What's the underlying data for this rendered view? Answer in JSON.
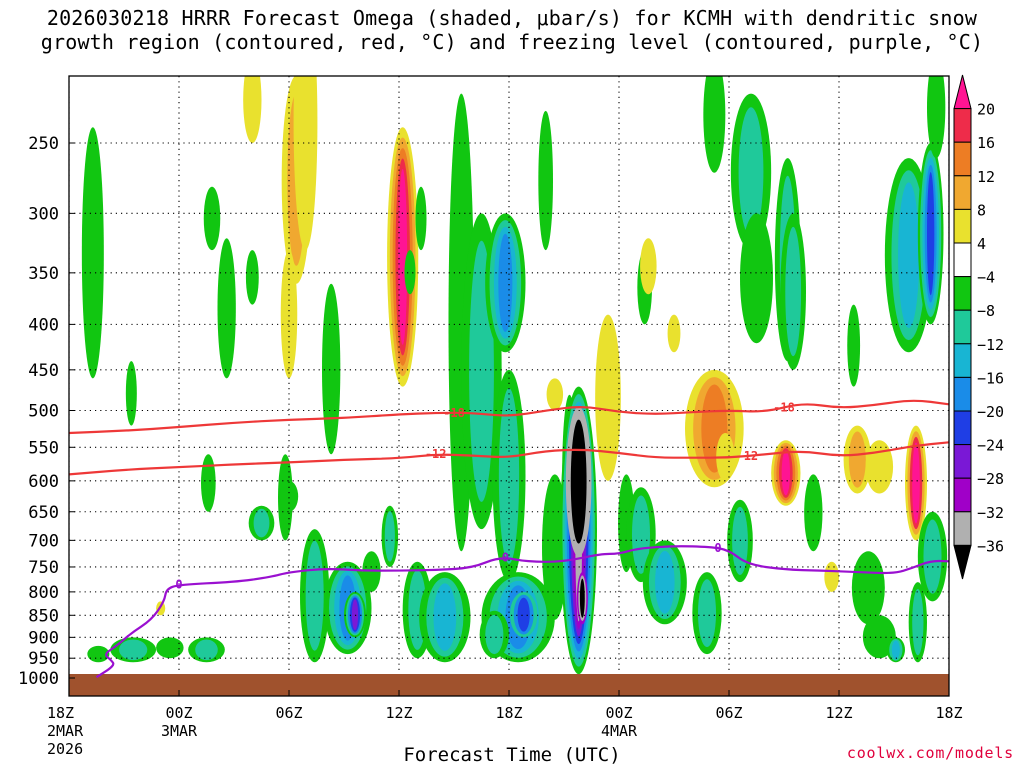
{
  "title_line1": "2026030218 HRRR Forecast Omega (shaded, μbar/s) for KCMH with dendritic snow",
  "title_line2": "growth region (contoured, red, °C) and freezing level (contoured, purple, °C)",
  "credit": "coolwx.com/models",
  "chart_data": {
    "type": "heatmap",
    "title": "2026030218 HRRR Forecast Omega (shaded, μbar/s) for KCMH with dendritic snow growth region (contoured, red, °C) and freezing level (contoured, purple, °C)",
    "xlabel": "Forecast Time (UTC)",
    "ylabel": "",
    "x_range_hours": [
      0,
      48
    ],
    "y_range_hpa": [
      1000,
      200
    ],
    "x_ticks": [
      {
        "hour": 0,
        "lines": [
          "18Z",
          "2MAR",
          "2026"
        ]
      },
      {
        "hour": 6,
        "lines": [
          "00Z",
          "3MAR"
        ]
      },
      {
        "hour": 12,
        "lines": [
          "06Z"
        ]
      },
      {
        "hour": 18,
        "lines": [
          "12Z"
        ]
      },
      {
        "hour": 24,
        "lines": [
          "18Z"
        ]
      },
      {
        "hour": 30,
        "lines": [
          "00Z",
          "4MAR"
        ]
      },
      {
        "hour": 36,
        "lines": [
          "06Z"
        ]
      },
      {
        "hour": 42,
        "lines": [
          "12Z"
        ]
      },
      {
        "hour": 48,
        "lines": [
          "18Z"
        ]
      }
    ],
    "y_ticks": [
      250,
      300,
      350,
      400,
      450,
      500,
      550,
      600,
      650,
      700,
      750,
      800,
      850,
      900,
      950,
      1000
    ],
    "colorbar": {
      "labels": [
        "20",
        "16",
        "12",
        "8",
        "4",
        "−4",
        "−8",
        "−12",
        "−16",
        "−20",
        "−24",
        "−28",
        "−32",
        "−36"
      ],
      "bins": [
        {
          "min": 20,
          "max": null,
          "color": "#ff1493"
        },
        {
          "min": 16,
          "max": 20,
          "color": "#ee2c4a"
        },
        {
          "min": 12,
          "max": 16,
          "color": "#ed7d24"
        },
        {
          "min": 8,
          "max": 12,
          "color": "#f0a830"
        },
        {
          "min": 4,
          "max": 8,
          "color": "#e9e12e"
        },
        {
          "min": -4,
          "max": 4,
          "color": "#ffffff"
        },
        {
          "min": -8,
          "max": -4,
          "color": "#11c611"
        },
        {
          "min": -12,
          "max": -8,
          "color": "#1fc99a"
        },
        {
          "min": -16,
          "max": -12,
          "color": "#18b5d3"
        },
        {
          "min": -20,
          "max": -16,
          "color": "#1a8ce8"
        },
        {
          "min": -24,
          "max": -20,
          "color": "#1f3ee5"
        },
        {
          "min": -28,
          "max": -24,
          "color": "#7a18d6"
        },
        {
          "min": -32,
          "max": -28,
          "color": "#a000c8"
        },
        {
          "min": -36,
          "max": -32,
          "color": "#b0b0b0"
        },
        {
          "min": null,
          "max": -36,
          "color": "#000000"
        }
      ]
    },
    "series": [
      {
        "name": "-18 °C isotherm",
        "color": "#ee3838",
        "label": "-18",
        "points": [
          [
            0,
            530
          ],
          [
            3,
            527
          ],
          [
            6,
            522
          ],
          [
            9,
            516
          ],
          [
            12,
            512
          ],
          [
            15,
            510
          ],
          [
            18,
            505
          ],
          [
            20,
            503
          ],
          [
            22,
            503
          ],
          [
            24,
            508
          ],
          [
            26,
            500
          ],
          [
            28,
            494
          ],
          [
            30,
            502
          ],
          [
            32,
            505
          ],
          [
            34,
            502
          ],
          [
            36,
            500
          ],
          [
            38,
            502
          ],
          [
            40,
            490
          ],
          [
            42,
            497
          ],
          [
            44,
            493
          ],
          [
            46,
            486
          ],
          [
            48,
            492
          ]
        ],
        "label_hours": [
          21,
          39
        ]
      },
      {
        "name": "-12 °C isotherm",
        "color": "#ee3838",
        "label": "-12",
        "points": [
          [
            0,
            590
          ],
          [
            3,
            583
          ],
          [
            6,
            579
          ],
          [
            9,
            575
          ],
          [
            12,
            572
          ],
          [
            15,
            568
          ],
          [
            18,
            566
          ],
          [
            20,
            560
          ],
          [
            22,
            562
          ],
          [
            24,
            565
          ],
          [
            26,
            555
          ],
          [
            28,
            553
          ],
          [
            30,
            558
          ],
          [
            32,
            565
          ],
          [
            34,
            565
          ],
          [
            36,
            565
          ],
          [
            38,
            560
          ],
          [
            40,
            555
          ],
          [
            42,
            563
          ],
          [
            44,
            558
          ],
          [
            46,
            548
          ],
          [
            48,
            543
          ]
        ],
        "label_hours": [
          20,
          37
        ]
      },
      {
        "name": "0 °C freezing level",
        "color": "#9a10d0",
        "label": "0",
        "points": [
          [
            1.5,
            998
          ],
          [
            2.5,
            968
          ],
          [
            2.3,
            955
          ],
          [
            1.9,
            940
          ],
          [
            2.6,
            920
          ],
          [
            3.4,
            890
          ],
          [
            4.5,
            860
          ],
          [
            5.2,
            820
          ],
          [
            5.3,
            794
          ],
          [
            6,
            785
          ],
          [
            9,
            780
          ],
          [
            11,
            770
          ],
          [
            12,
            760
          ],
          [
            14,
            753
          ],
          [
            16,
            757
          ],
          [
            18,
            757
          ],
          [
            20,
            756
          ],
          [
            22,
            752
          ],
          [
            23.5,
            730
          ],
          [
            25,
            740
          ],
          [
            27,
            740
          ],
          [
            29,
            725
          ],
          [
            30,
            725
          ],
          [
            31,
            715
          ],
          [
            33,
            710
          ],
          [
            35,
            712
          ],
          [
            36,
            718
          ],
          [
            37,
            745
          ],
          [
            39,
            755
          ],
          [
            41,
            757
          ],
          [
            43,
            760
          ],
          [
            45,
            763
          ],
          [
            46,
            752
          ],
          [
            47,
            738
          ],
          [
            48,
            739
          ]
        ],
        "label_hours": [
          6.0,
          23.8,
          35.4
        ]
      }
    ],
    "shaded_features": [
      {
        "value_class": "-4 to -8",
        "hour": 1.3,
        "hpa_top": 240,
        "hpa_bottom": 460
      },
      {
        "value_class": "4 to 8",
        "hour": 9.6,
        "hpa_top": 200,
        "hpa_bottom": 290
      },
      {
        "value_class": "12 to 16",
        "hour": 12.3,
        "hpa_top": 205,
        "hpa_bottom": 380
      },
      {
        "value_class": "16 to 20",
        "hour": 18.3,
        "hpa_top": 350,
        "hpa_bottom": 470
      },
      {
        "value_class": "-16 to -20",
        "hour": 23.8,
        "hpa_top": 330,
        "hpa_bottom": 420
      },
      {
        "value_class": "< -36",
        "hour": 27.8,
        "hpa_top": 495,
        "hpa_bottom": 730
      },
      {
        "value_class": "-20 to -24",
        "hour": 15.6,
        "hpa_top": 800,
        "hpa_bottom": 900
      },
      {
        "value_class": "-20 to -24",
        "hour": 24.8,
        "hpa_top": 790,
        "hpa_bottom": 900
      },
      {
        "value_class": "8 to 12",
        "hour": 35.0,
        "hpa_top": 470,
        "hpa_bottom": 580
      },
      {
        "value_class": "> 20",
        "hour": 39.0,
        "hpa_top": 570,
        "hpa_bottom": 625
      },
      {
        "value_class": "> 20",
        "hour": 46.4,
        "hpa_top": 620,
        "hpa_bottom": 700
      },
      {
        "value_class": "-20 to -24",
        "hour": 46.6,
        "hpa_top": 290,
        "hpa_bottom": 340
      }
    ]
  }
}
